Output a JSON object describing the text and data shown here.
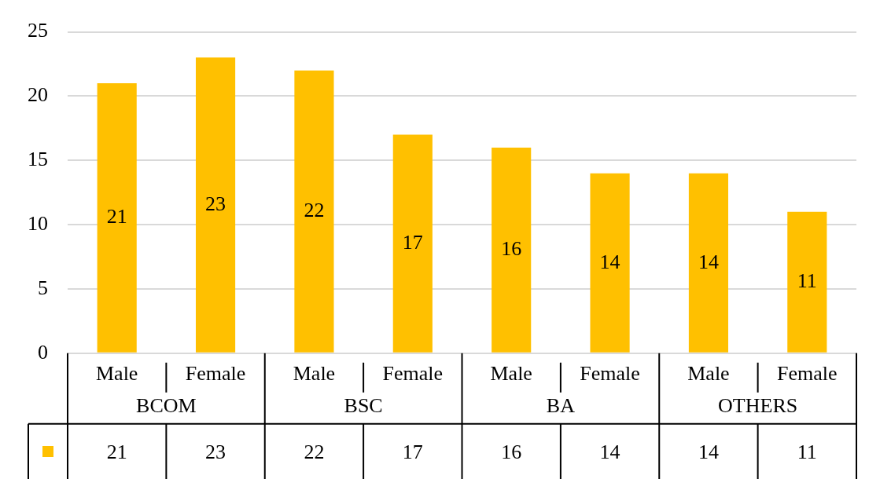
{
  "chart_data": {
    "type": "bar",
    "categories": [
      "Male",
      "Female",
      "Male",
      "Female",
      "Male",
      "Female",
      "Male",
      "Female"
    ],
    "values": [
      21,
      23,
      22,
      17,
      16,
      14,
      14,
      11
    ],
    "value_labels": [
      "21",
      "23",
      "22",
      "17",
      "16",
      "14",
      "14",
      "11"
    ],
    "color": "#ffc000",
    "ylim": [
      0,
      25
    ],
    "yticks": [
      0,
      5,
      10,
      15,
      20,
      25
    ],
    "grid": "y",
    "annotations": [
      "BCOM",
      "BSC",
      "BA",
      "OTHERS",
      "21",
      "23",
      "22",
      "17",
      "16",
      "14",
      "14",
      "11"
    ]
  }
}
